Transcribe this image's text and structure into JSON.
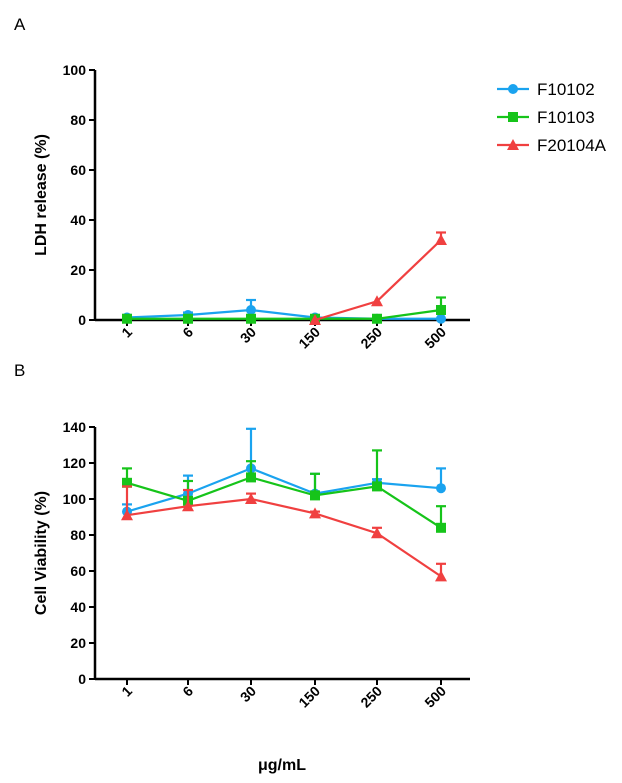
{
  "colors": {
    "F10102": "#1aa3ef",
    "F10103": "#16c41a",
    "F20104A": "#f04040",
    "axis": "#000000"
  },
  "shared_xlabel": "μg/mL",
  "legend": [
    {
      "label": "F10102",
      "marker": "circle",
      "color": "#1aa3ef"
    },
    {
      "label": "F10103",
      "marker": "square",
      "color": "#16c41a"
    },
    {
      "label": "F20104A",
      "marker": "triangle",
      "color": "#f04040"
    }
  ],
  "chart_data": [
    {
      "panel": "A",
      "type": "line",
      "categories": [
        "1",
        "6",
        "30",
        "150",
        "250",
        "500"
      ],
      "ylabel": "LDH release (%)",
      "ylim": [
        0,
        100
      ],
      "yticks": [
        0,
        20,
        40,
        60,
        80,
        100
      ],
      "series": [
        {
          "name": "F10102",
          "values": [
            1,
            2,
            4,
            1,
            0.5,
            0.5
          ],
          "errors": [
            1,
            1,
            4,
            0.5,
            0.5,
            0
          ]
        },
        {
          "name": "F10103",
          "values": [
            0.5,
            0.5,
            0.5,
            0.5,
            0.5,
            4
          ],
          "errors": [
            0.5,
            0.5,
            0.5,
            0.5,
            0.5,
            5
          ]
        },
        {
          "name": "F20104A",
          "values": [
            null,
            null,
            null,
            0,
            7.5,
            32
          ],
          "errors": [
            null,
            null,
            null,
            0,
            0,
            3
          ]
        }
      ]
    },
    {
      "panel": "B",
      "type": "line",
      "categories": [
        "1",
        "6",
        "30",
        "150",
        "250",
        "500"
      ],
      "ylabel": "Cell Viability (%)",
      "ylim": [
        0,
        140
      ],
      "yticks": [
        0,
        20,
        40,
        60,
        80,
        100,
        120,
        140
      ],
      "series": [
        {
          "name": "F10102",
          "values": [
            93,
            103,
            117,
            103,
            109,
            106
          ],
          "errors": [
            4,
            10,
            22,
            11,
            2,
            11
          ]
        },
        {
          "name": "F10103",
          "values": [
            109,
            99,
            112,
            102,
            107,
            84
          ],
          "errors": [
            8,
            11,
            9,
            12,
            20,
            12
          ]
        },
        {
          "name": "F20104A",
          "values": [
            91,
            96,
            100,
            92,
            81,
            57
          ],
          "errors": [
            16,
            9,
            3,
            1,
            3,
            7
          ]
        }
      ]
    }
  ]
}
